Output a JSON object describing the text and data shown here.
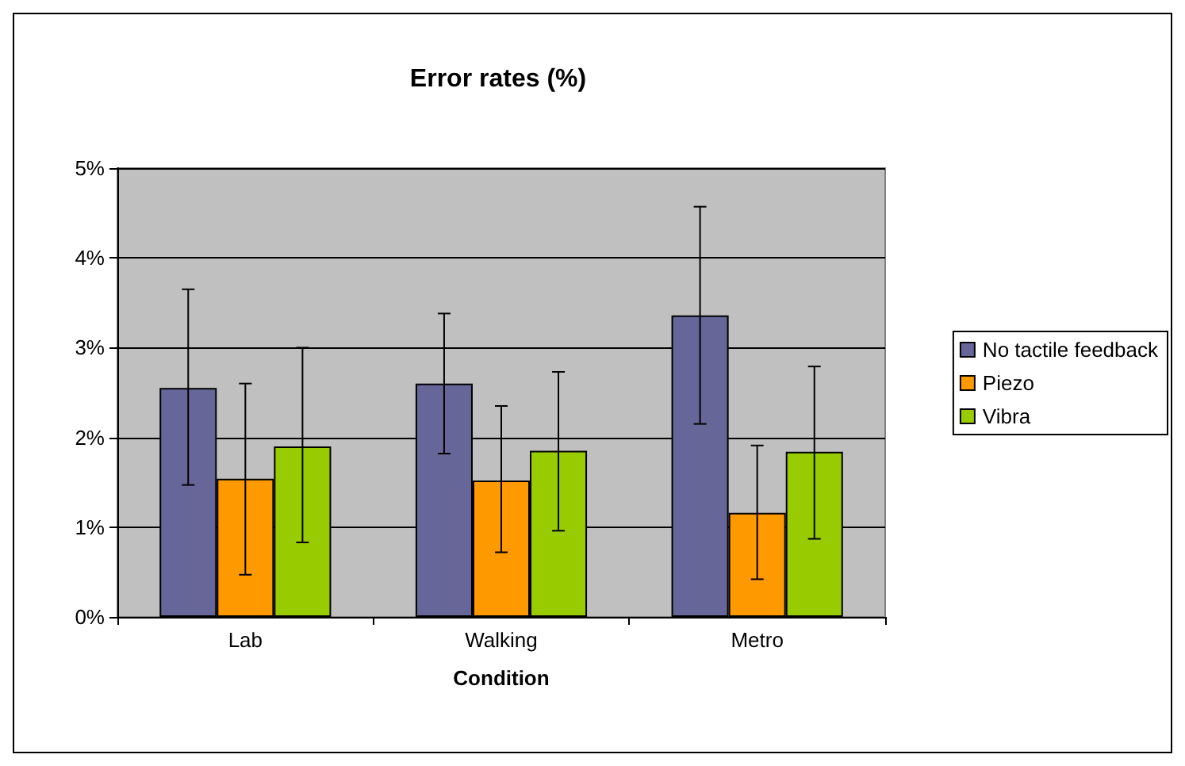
{
  "chart_data": {
    "type": "bar",
    "title": "Error rates (%)",
    "xlabel": "Condition",
    "categories": [
      "Lab",
      "Walking",
      "Metro"
    ],
    "series": [
      {
        "name": "No tactile feedback",
        "color": "#666699",
        "values": [
          2.55,
          2.6,
          3.36
        ],
        "errors": [
          [
            1.47,
            3.65
          ],
          [
            1.82,
            3.38
          ],
          [
            2.15,
            4.57
          ]
        ]
      },
      {
        "name": "Piezo",
        "color": "#ff9900",
        "values": [
          1.54,
          1.52,
          1.16
        ],
        "errors": [
          [
            0.47,
            2.6
          ],
          [
            0.72,
            2.35
          ],
          [
            0.42,
            1.91
          ]
        ]
      },
      {
        "name": "Vibra",
        "color": "#99cc00",
        "values": [
          1.9,
          1.85,
          1.84
        ],
        "errors": [
          [
            0.83,
            3.0
          ],
          [
            0.96,
            2.73
          ],
          [
            0.87,
            2.79
          ]
        ]
      }
    ],
    "ylim": [
      0,
      5
    ],
    "yticks": [
      {
        "value": 0,
        "label": "0%"
      },
      {
        "value": 1,
        "label": "1%"
      },
      {
        "value": 2,
        "label": "2%"
      },
      {
        "value": 3,
        "label": "3%"
      },
      {
        "value": 4,
        "label": "4%"
      },
      {
        "value": 5,
        "label": "5%"
      }
    ],
    "grid": "y",
    "legend": "right"
  }
}
